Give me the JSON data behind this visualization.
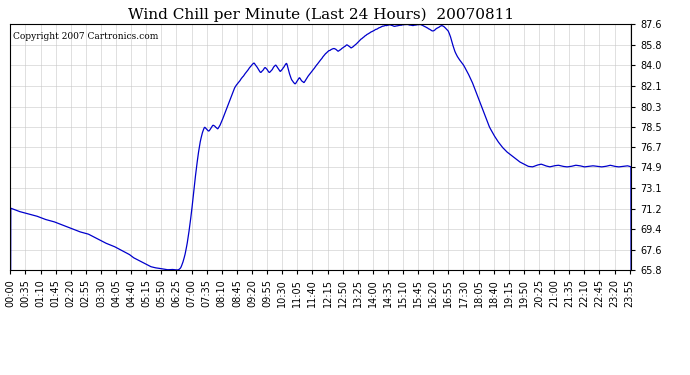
{
  "title": "Wind Chill per Minute (Last 24 Hours)  20070811",
  "copyright": "Copyright 2007 Cartronics.com",
  "line_color": "#0000cc",
  "bg_color": "#ffffff",
  "plot_bg_color": "#ffffff",
  "grid_color": "#c8c8c8",
  "yticks": [
    65.8,
    67.6,
    69.4,
    71.2,
    73.1,
    74.9,
    76.7,
    78.5,
    80.3,
    82.1,
    84.0,
    85.8,
    87.6
  ],
  "ylim": [
    65.8,
    87.6
  ],
  "xtick_labels": [
    "00:00",
    "00:35",
    "01:10",
    "01:45",
    "02:20",
    "02:55",
    "03:30",
    "04:05",
    "04:40",
    "05:15",
    "05:50",
    "06:25",
    "07:00",
    "07:35",
    "08:10",
    "08:45",
    "09:20",
    "09:55",
    "10:30",
    "11:05",
    "11:40",
    "12:15",
    "12:50",
    "13:25",
    "14:00",
    "14:35",
    "15:10",
    "15:45",
    "16:20",
    "16:55",
    "17:30",
    "18:05",
    "18:40",
    "19:15",
    "19:50",
    "20:25",
    "21:00",
    "21:35",
    "22:10",
    "22:45",
    "23:20",
    "23:55"
  ],
  "title_fontsize": 11,
  "tick_fontsize": 7,
  "copyright_fontsize": 6.5,
  "keypoints": [
    [
      0,
      71.3
    ],
    [
      20,
      71.0
    ],
    [
      40,
      70.8
    ],
    [
      60,
      70.6
    ],
    [
      80,
      70.3
    ],
    [
      100,
      70.1
    ],
    [
      120,
      69.8
    ],
    [
      140,
      69.5
    ],
    [
      160,
      69.2
    ],
    [
      180,
      69.0
    ],
    [
      200,
      68.6
    ],
    [
      220,
      68.2
    ],
    [
      240,
      67.9
    ],
    [
      260,
      67.5
    ],
    [
      275,
      67.2
    ],
    [
      285,
      66.9
    ],
    [
      295,
      66.7
    ],
    [
      305,
      66.5
    ],
    [
      315,
      66.3
    ],
    [
      325,
      66.1
    ],
    [
      335,
      66.0
    ],
    [
      345,
      65.95
    ],
    [
      355,
      65.88
    ],
    [
      365,
      65.82
    ],
    [
      375,
      65.85
    ],
    [
      385,
      65.8
    ],
    [
      390,
      65.82
    ],
    [
      395,
      66.0
    ],
    [
      400,
      66.5
    ],
    [
      405,
      67.2
    ],
    [
      410,
      68.2
    ],
    [
      415,
      69.5
    ],
    [
      420,
      71.0
    ],
    [
      425,
      72.8
    ],
    [
      430,
      74.5
    ],
    [
      435,
      76.0
    ],
    [
      440,
      77.2
    ],
    [
      445,
      78.0
    ],
    [
      450,
      78.5
    ],
    [
      455,
      78.3
    ],
    [
      460,
      78.1
    ],
    [
      465,
      78.4
    ],
    [
      470,
      78.7
    ],
    [
      475,
      78.5
    ],
    [
      480,
      78.3
    ],
    [
      485,
      78.6
    ],
    [
      490,
      79.0
    ],
    [
      495,
      79.5
    ],
    [
      500,
      80.0
    ],
    [
      505,
      80.5
    ],
    [
      510,
      81.0
    ],
    [
      515,
      81.5
    ],
    [
      520,
      82.0
    ],
    [
      525,
      82.3
    ],
    [
      530,
      82.5
    ],
    [
      535,
      82.8
    ],
    [
      540,
      83.0
    ],
    [
      545,
      83.3
    ],
    [
      550,
      83.5
    ],
    [
      555,
      83.8
    ],
    [
      560,
      84.0
    ],
    [
      565,
      84.2
    ],
    [
      570,
      83.9
    ],
    [
      575,
      83.6
    ],
    [
      580,
      83.3
    ],
    [
      585,
      83.5
    ],
    [
      590,
      83.8
    ],
    [
      595,
      83.6
    ],
    [
      600,
      83.3
    ],
    [
      605,
      83.5
    ],
    [
      610,
      83.8
    ],
    [
      615,
      84.0
    ],
    [
      620,
      83.7
    ],
    [
      625,
      83.4
    ],
    [
      630,
      83.6
    ],
    [
      635,
      83.9
    ],
    [
      640,
      84.2
    ],
    [
      645,
      83.5
    ],
    [
      650,
      82.8
    ],
    [
      655,
      82.5
    ],
    [
      660,
      82.3
    ],
    [
      665,
      82.6
    ],
    [
      670,
      82.9
    ],
    [
      675,
      82.6
    ],
    [
      680,
      82.4
    ],
    [
      685,
      82.7
    ],
    [
      690,
      83.0
    ],
    [
      700,
      83.5
    ],
    [
      710,
      84.0
    ],
    [
      720,
      84.5
    ],
    [
      730,
      85.0
    ],
    [
      740,
      85.3
    ],
    [
      750,
      85.5
    ],
    [
      760,
      85.2
    ],
    [
      770,
      85.5
    ],
    [
      780,
      85.8
    ],
    [
      790,
      85.5
    ],
    [
      800,
      85.8
    ],
    [
      810,
      86.2
    ],
    [
      820,
      86.5
    ],
    [
      830,
      86.8
    ],
    [
      840,
      87.0
    ],
    [
      850,
      87.2
    ],
    [
      860,
      87.4
    ],
    [
      870,
      87.5
    ],
    [
      880,
      87.55
    ],
    [
      890,
      87.4
    ],
    [
      900,
      87.5
    ],
    [
      910,
      87.55
    ],
    [
      920,
      87.6
    ],
    [
      930,
      87.5
    ],
    [
      940,
      87.55
    ],
    [
      950,
      87.6
    ],
    [
      960,
      87.4
    ],
    [
      970,
      87.2
    ],
    [
      980,
      87.0
    ],
    [
      990,
      87.3
    ],
    [
      1000,
      87.5
    ],
    [
      1005,
      87.4
    ],
    [
      1010,
      87.2
    ],
    [
      1015,
      87.0
    ],
    [
      1020,
      86.5
    ],
    [
      1025,
      85.8
    ],
    [
      1030,
      85.2
    ],
    [
      1035,
      84.8
    ],
    [
      1040,
      84.5
    ],
    [
      1050,
      84.0
    ],
    [
      1060,
      83.3
    ],
    [
      1070,
      82.5
    ],
    [
      1080,
      81.5
    ],
    [
      1090,
      80.5
    ],
    [
      1100,
      79.5
    ],
    [
      1110,
      78.5
    ],
    [
      1120,
      77.8
    ],
    [
      1130,
      77.2
    ],
    [
      1140,
      76.7
    ],
    [
      1150,
      76.3
    ],
    [
      1160,
      76.0
    ],
    [
      1170,
      75.7
    ],
    [
      1180,
      75.4
    ],
    [
      1190,
      75.2
    ],
    [
      1200,
      75.0
    ],
    [
      1210,
      74.95
    ],
    [
      1220,
      75.1
    ],
    [
      1230,
      75.2
    ],
    [
      1240,
      75.05
    ],
    [
      1250,
      74.95
    ],
    [
      1260,
      75.05
    ],
    [
      1270,
      75.1
    ],
    [
      1280,
      75.0
    ],
    [
      1290,
      74.95
    ],
    [
      1300,
      75.0
    ],
    [
      1310,
      75.1
    ],
    [
      1320,
      75.05
    ],
    [
      1330,
      74.95
    ],
    [
      1340,
      75.0
    ],
    [
      1350,
      75.05
    ],
    [
      1360,
      75.0
    ],
    [
      1370,
      74.95
    ],
    [
      1380,
      75.0
    ],
    [
      1390,
      75.1
    ],
    [
      1400,
      75.0
    ],
    [
      1410,
      74.95
    ],
    [
      1420,
      75.0
    ],
    [
      1430,
      75.05
    ],
    [
      1439,
      74.95
    ]
  ]
}
